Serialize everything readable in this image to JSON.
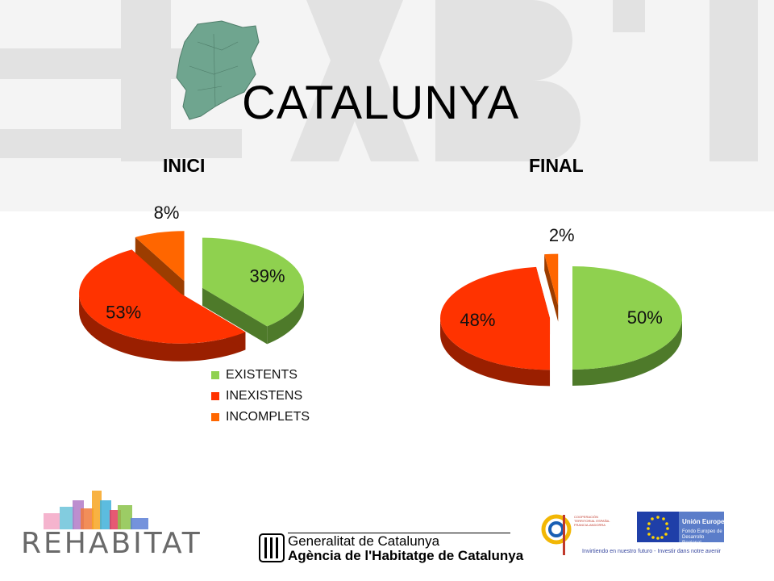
{
  "header": {
    "title": "CATALUNYA",
    "watermark": "HABIT"
  },
  "chart_data": [
    {
      "type": "pie",
      "title": "INICI",
      "categories": [
        "EXISTENTS",
        "INEXISTENS",
        "INCOMPLETS"
      ],
      "values": [
        39,
        53,
        8
      ],
      "labels": [
        "39%",
        "53%",
        "8%"
      ],
      "colors": [
        "#8fd14f",
        "#ff3300",
        "#ff6600"
      ]
    },
    {
      "type": "pie",
      "title": "FINAL",
      "categories": [
        "EXISTENTS",
        "INEXISTENS",
        "INCOMPLETS"
      ],
      "values": [
        50,
        48,
        2
      ],
      "labels": [
        "50%",
        "48%",
        "2%"
      ],
      "colors": [
        "#8fd14f",
        "#ff3300",
        "#ff6600"
      ]
    }
  ],
  "legend": {
    "items": [
      {
        "label": "EXISTENTS",
        "color": "#8fd14f"
      },
      {
        "label": "INEXISTENS",
        "color": "#ff3300"
      },
      {
        "label": "INCOMPLETS",
        "color": "#ff6600"
      }
    ]
  },
  "footer": {
    "rehabitat": "REHABITAT",
    "generalitat_line1": "Generalitat de Catalunya",
    "generalitat_line2": "Agència de l'Habitatge de Catalunya",
    "eu_label": "Unión Europea",
    "eu_fund": "Fondo Europeo de Desarrollo Regional",
    "eu_tagline": "Invirtiendo en nuestro futuro - Investir dans notre avenir",
    "coop_text": "COOPERACIÓN TERRITORIAL ESPAÑA-FRANCIA-ANDORRA"
  }
}
